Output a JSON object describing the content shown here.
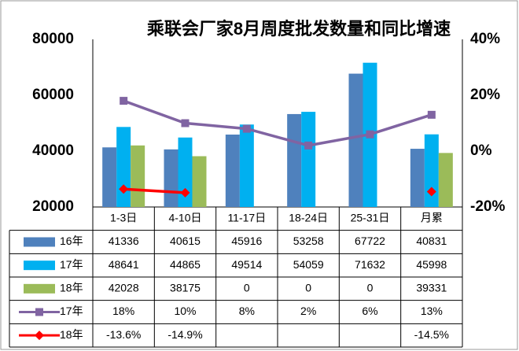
{
  "chart_data": {
    "type": "bar",
    "title": "乘联会厂家8月周度批发数量和同比增速",
    "categories": [
      "1-3日",
      "4-10日",
      "11-17日",
      "18-24日",
      "25-31日",
      "月累"
    ],
    "ylim": [
      20000,
      80000
    ],
    "yticks": [
      20000,
      40000,
      60000,
      80000
    ],
    "y2lim": [
      -20,
      40
    ],
    "y2ticks": [
      {
        "value": -20,
        "label": "-20%"
      },
      {
        "value": 0,
        "label": "0%"
      },
      {
        "value": 20,
        "label": "20%"
      },
      {
        "value": 40,
        "label": "40%"
      }
    ],
    "series": [
      {
        "name": "16年",
        "type": "bar",
        "color": "#4f81bd",
        "values": [
          41336,
          40615,
          45916,
          53258,
          67722,
          40831
        ]
      },
      {
        "name": "17年",
        "type": "bar",
        "color": "#00b0f0",
        "values": [
          48641,
          44865,
          49514,
          54059,
          71632,
          45998
        ]
      },
      {
        "name": "18年",
        "type": "bar",
        "color": "#9bbb59",
        "values": [
          42028,
          38175,
          0,
          0,
          0,
          39331
        ]
      },
      {
        "name": "17年",
        "type": "line",
        "axis": "y2",
        "marker": "square",
        "color": "#8064a2",
        "values": [
          18,
          10,
          8,
          2,
          6,
          13
        ],
        "value_labels": [
          "18%",
          "10%",
          "8%",
          "2%",
          "6%",
          "13%"
        ]
      },
      {
        "name": "18年",
        "type": "line",
        "axis": "y2",
        "marker": "diamond",
        "color": "#ff0000",
        "values": [
          -13.6,
          -14.9,
          null,
          null,
          null,
          -14.5
        ],
        "value_labels": [
          "-13.6%",
          "-14.9%",
          null,
          null,
          null,
          "-14.5%"
        ]
      }
    ]
  }
}
